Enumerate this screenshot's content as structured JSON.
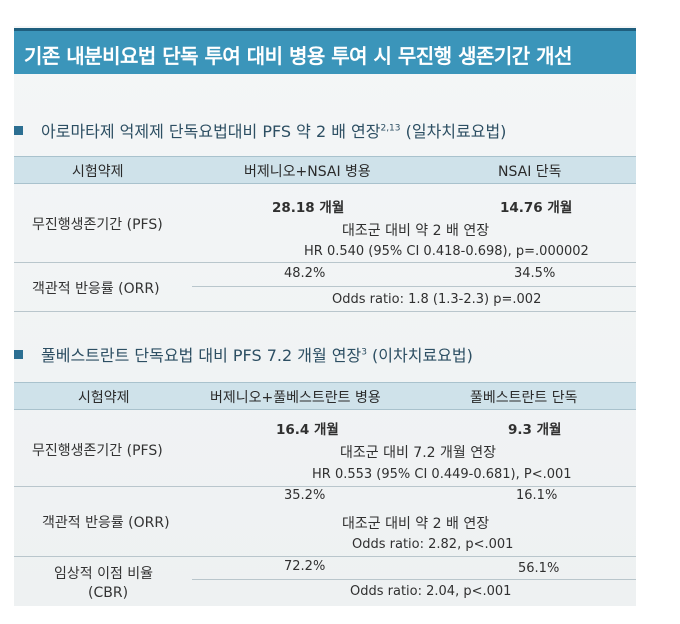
{
  "title": "기존 내분비요법 단독 투여 대비 병용 투여 시 무진행 생존기간 개선",
  "section1": {
    "heading": "아로마타제 억제제 단독요법대비 PFS 약 2 배 연장",
    "heading_sup": "2,13",
    "heading_tail": "(일차치료요법)",
    "columns": [
      "시험약제",
      "버제니오+NSAI 병용",
      "NSAI 단독"
    ],
    "pfs": {
      "label": "무진행생존기간 (PFS)",
      "combo": "28.18 개월",
      "mono": "14.76 개월",
      "note": "대조군 대비 약 2 배 연장",
      "stat": "HR 0.540 (95% CI 0.418-0.698), p=.000002"
    },
    "orr": {
      "label": "객관적 반응률 (ORR)",
      "combo": "48.2%",
      "mono": "34.5%",
      "stat": "Odds ratio: 1.8 (1.3-2.3) p=.002"
    }
  },
  "section2": {
    "heading": "풀베스트란트 단독요법 대비 PFS 7.2 개월 연장",
    "heading_sup": "3",
    "heading_tail": "(이차치료요법)",
    "columns": [
      "시험약제",
      "버제니오+풀베스트란트 병용",
      "풀베스트란트 단독"
    ],
    "pfs": {
      "label": "무진행생존기간 (PFS)",
      "combo": "16.4 개월",
      "mono": "9.3 개월",
      "note": "대조군 대비 7.2 개월 연장",
      "stat": "HR 0.553 (95% CI 0.449-0.681), P<.001"
    },
    "orr": {
      "label": "객관적 반응률 (ORR)",
      "combo": "35.2%",
      "mono": "16.1%",
      "note": "대조군 대비 약 2 배 연장",
      "stat": "Odds ratio: 2.82, p<.001"
    },
    "cbr": {
      "label_line1": "임상적 이점 비율",
      "label_line2": "(CBR)",
      "combo": "72.2%",
      "mono": "56.1%",
      "stat": "Odds ratio: 2.04, p<.001"
    }
  },
  "colors": {
    "title_bar": "#3b95ba",
    "header_row": "#cfe2ea",
    "bullet": "#2c6f92"
  }
}
